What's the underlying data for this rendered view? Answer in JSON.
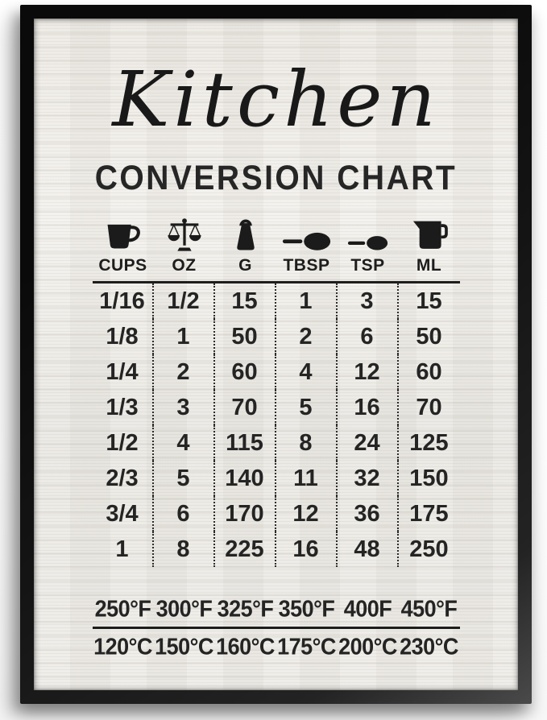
{
  "poster": {
    "title_script": "Kitchen",
    "title_main": "CONVERSION CHART",
    "columns": [
      {
        "label": "CUPS",
        "icon": "cup-icon"
      },
      {
        "label": "OZ",
        "icon": "scale-icon"
      },
      {
        "label": "G",
        "icon": "weight-icon"
      },
      {
        "label": "TBSP",
        "icon": "tablespoon-icon"
      },
      {
        "label": "TSP",
        "icon": "teaspoon-icon"
      },
      {
        "label": "ML",
        "icon": "measuring-jug-icon"
      }
    ],
    "rows": [
      [
        "1/16",
        "1/2",
        "15",
        "1",
        "3",
        "15"
      ],
      [
        "1/8",
        "1",
        "50",
        "2",
        "6",
        "50"
      ],
      [
        "1/4",
        "2",
        "60",
        "4",
        "12",
        "60"
      ],
      [
        "1/3",
        "3",
        "70",
        "5",
        "16",
        "70"
      ],
      [
        "1/2",
        "4",
        "115",
        "8",
        "24",
        "125"
      ],
      [
        "2/3",
        "5",
        "140",
        "11",
        "32",
        "150"
      ],
      [
        "3/4",
        "6",
        "170",
        "12",
        "36",
        "175"
      ],
      [
        "1",
        "8",
        "225",
        "16",
        "48",
        "250"
      ]
    ],
    "temperatures": {
      "fahrenheit": [
        "250°F",
        "300°F",
        "325°F",
        "350°F",
        "400F",
        "450°F"
      ],
      "celsius": [
        "120°C",
        "150°C",
        "160°C",
        "175°C",
        "200°C",
        "230°C"
      ]
    },
    "colors": {
      "frame": "#141414",
      "paper": "#eeece7",
      "ink": "#1d1d1d"
    }
  }
}
